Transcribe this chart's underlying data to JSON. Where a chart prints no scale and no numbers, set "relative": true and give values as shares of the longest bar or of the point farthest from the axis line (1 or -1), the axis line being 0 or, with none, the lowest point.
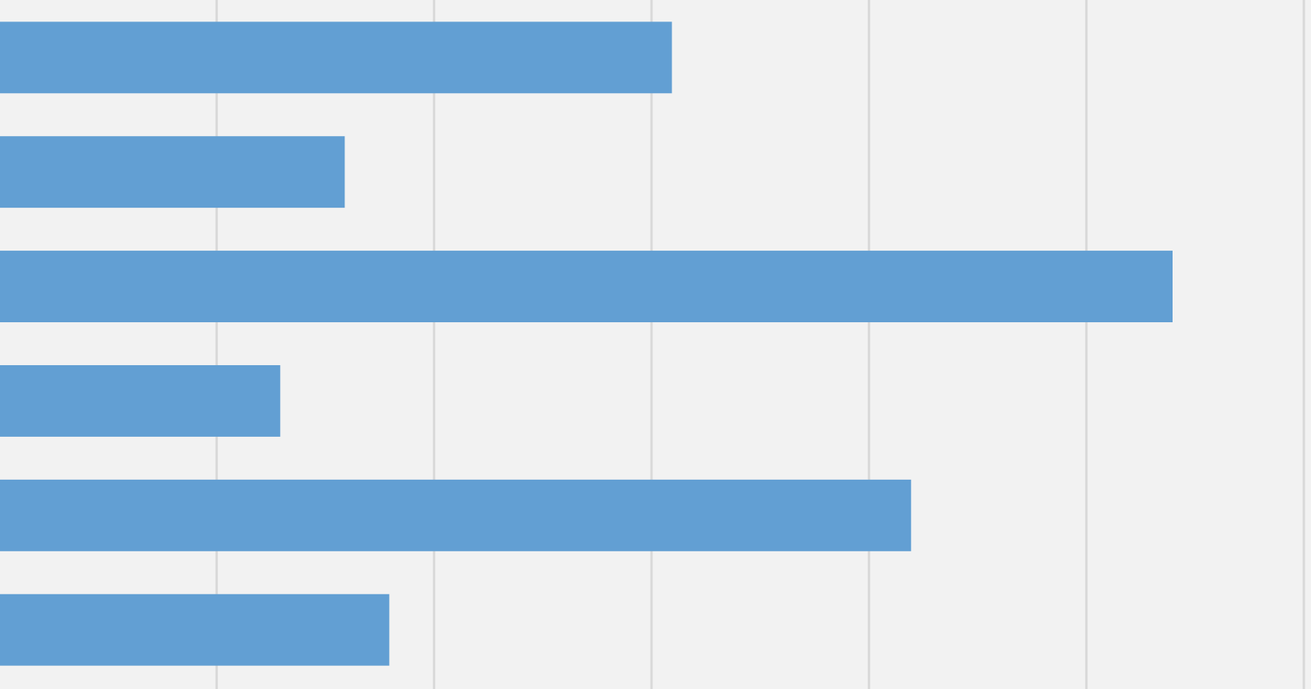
{
  "chart_data": {
    "type": "bar",
    "orientation": "horizontal",
    "relative": true,
    "grid": "x",
    "categories": [
      null,
      null,
      null,
      null,
      null,
      null
    ],
    "values": [
      0.573,
      0.294,
      1,
      0.239,
      0.777,
      0.332
    ],
    "color": "#629fd3"
  }
}
